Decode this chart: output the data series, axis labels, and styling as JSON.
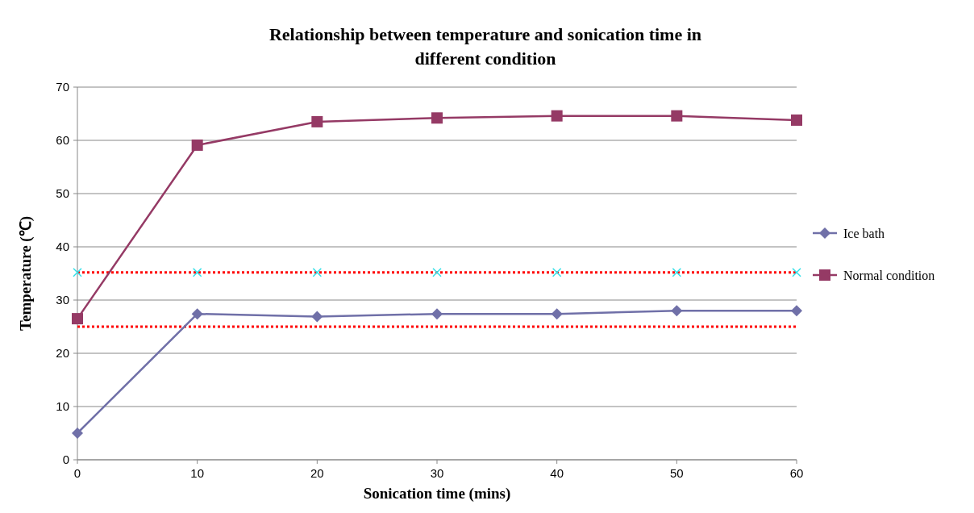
{
  "chart_data": {
    "type": "line",
    "title": "Relationship between temperature and sonication time in different condition",
    "xlabel": "Sonication time (mins)",
    "ylabel": "Temperature (℃)",
    "x": [
      0,
      10,
      20,
      30,
      40,
      50,
      60
    ],
    "xlim": [
      0,
      60
    ],
    "xticks": [
      0,
      10,
      20,
      30,
      40,
      50,
      60
    ],
    "ylim": [
      0,
      70
    ],
    "yticks": [
      0,
      10,
      20,
      30,
      40,
      50,
      60,
      70
    ],
    "grid": "y",
    "legend": "right",
    "line_style": "solid",
    "series": [
      {
        "name": "Ice bath",
        "color": "#7070a8",
        "marker": "diamond",
        "values": [
          5,
          27.4,
          26.9,
          27.4,
          27.4,
          28,
          28
        ]
      },
      {
        "name": "Normal condition",
        "color": "#953a65",
        "marker": "square",
        "values": [
          26.5,
          59.1,
          63.5,
          64.2,
          64.6,
          64.6,
          63.8
        ]
      },
      {
        "type": "scatter",
        "color": "#33e0e8",
        "marker": "cross",
        "values": [
          35.2,
          35.2,
          35.2,
          35.2,
          35.2,
          35.2,
          35.2
        ]
      }
    ],
    "ref_lines": [
      {
        "axis": "y",
        "value": 35.2,
        "color": "#ff0000",
        "line_style": "dotted"
      },
      {
        "axis": "y",
        "value": 25,
        "color": "#ff0000",
        "line_style": "dotted"
      }
    ]
  }
}
